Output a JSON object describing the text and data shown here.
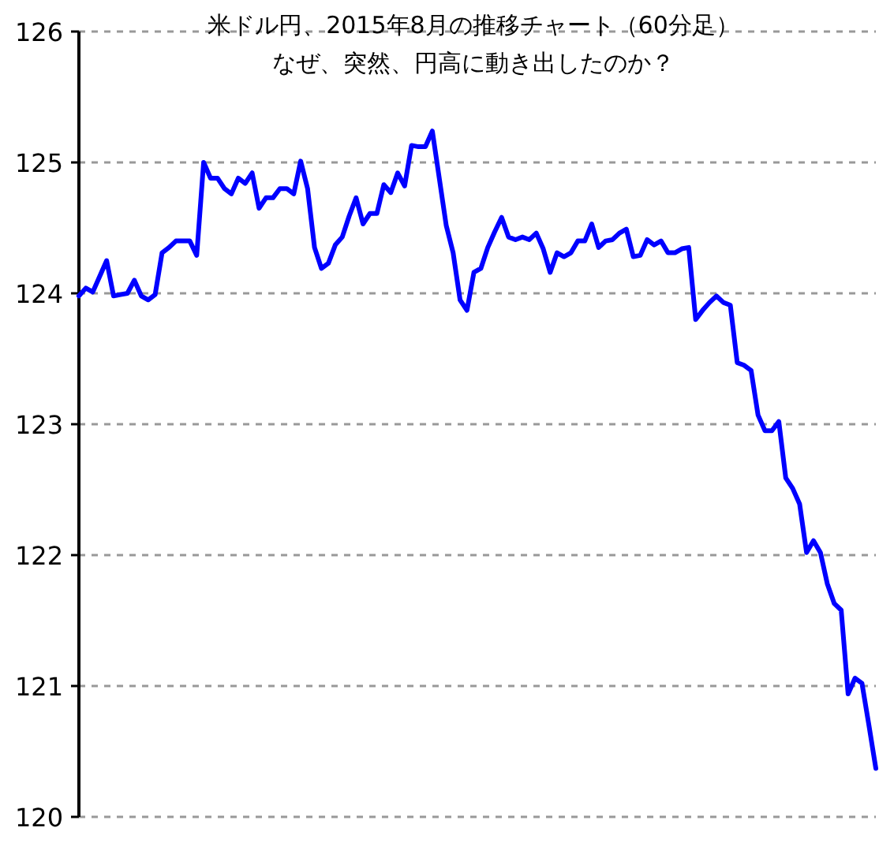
{
  "chart_data": {
    "type": "line",
    "title": "米ドル円、2015年8月の推移チャート（60分足）",
    "subtitle": "なぜ、突然、円高に動き出したのか？",
    "categories": [
      null,
      null,
      null,
      null,
      null,
      null,
      null,
      null,
      null,
      null,
      null,
      null,
      null,
      null,
      null,
      null,
      null,
      null,
      null,
      null,
      null,
      null,
      null,
      null,
      null,
      null,
      null,
      null,
      null,
      null,
      null,
      null,
      null,
      null,
      null,
      null,
      null,
      null,
      null,
      null,
      null,
      null,
      null,
      null,
      null,
      null,
      null,
      null,
      null,
      null,
      null,
      null,
      null,
      null,
      null,
      null,
      null,
      null,
      null,
      null,
      null,
      null,
      null,
      null,
      null,
      null,
      null,
      null,
      null,
      null,
      null,
      null,
      null,
      null,
      null,
      null,
      null,
      null,
      null,
      null,
      null,
      null,
      null,
      null,
      null,
      null,
      null,
      null,
      null,
      null,
      null,
      null,
      null,
      null,
      null,
      null,
      null,
      null,
      null,
      null,
      null,
      null,
      null,
      null,
      null,
      null,
      null,
      null,
      null,
      null,
      null,
      null,
      null,
      null,
      null,
      null
    ],
    "series": [
      {
        "color": "#0000ff",
        "values": [
          123.98,
          124.04,
          124.01,
          124.13,
          124.25,
          123.98,
          123.99,
          124.0,
          124.1,
          123.98,
          123.95,
          123.99,
          124.31,
          124.35,
          124.4,
          124.4,
          124.4,
          124.29,
          125.0,
          124.88,
          124.88,
          124.8,
          124.76,
          124.88,
          124.84,
          124.92,
          124.65,
          124.73,
          124.73,
          124.8,
          124.8,
          124.76,
          125.01,
          124.8,
          124.35,
          124.19,
          124.23,
          124.37,
          124.43,
          124.59,
          124.73,
          124.53,
          124.61,
          124.61,
          124.83,
          124.77,
          124.92,
          124.82,
          125.13,
          125.12,
          125.12,
          125.24,
          124.88,
          124.52,
          124.31,
          123.95,
          123.87,
          124.16,
          124.19,
          124.35,
          124.47,
          124.58,
          124.43,
          124.41,
          124.43,
          124.41,
          124.46,
          124.34,
          124.16,
          124.31,
          124.28,
          124.31,
          124.4,
          124.4,
          124.53,
          124.35,
          124.4,
          124.41,
          124.46,
          124.49,
          124.28,
          124.29,
          124.41,
          124.37,
          124.4,
          124.31,
          124.31,
          124.34,
          124.35,
          123.8,
          123.87,
          123.93,
          123.98,
          123.93,
          123.91,
          123.47,
          123.45,
          123.41,
          123.07,
          122.95,
          122.95,
          123.02,
          122.59,
          122.51,
          122.39,
          122.02,
          122.11,
          122.02,
          121.78,
          121.63,
          121.58,
          120.94,
          121.06,
          121.02,
          120.7,
          120.37
        ]
      }
    ],
    "ylim": [
      120,
      126
    ],
    "yticks": [
      120,
      121,
      122,
      123,
      124,
      125,
      126
    ],
    "grid": "y",
    "tick_labels": "y",
    "marker": "none",
    "line_style": "solid"
  }
}
